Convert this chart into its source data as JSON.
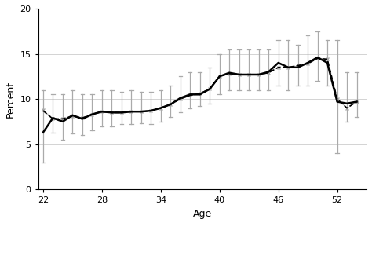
{
  "ages": [
    22,
    23,
    24,
    25,
    26,
    27,
    28,
    29,
    30,
    31,
    32,
    33,
    34,
    35,
    36,
    37,
    38,
    39,
    40,
    41,
    42,
    43,
    44,
    45,
    46,
    47,
    48,
    49,
    50,
    51,
    52,
    53,
    54
  ],
  "data_line": [
    6.3,
    7.9,
    7.5,
    8.2,
    7.8,
    8.3,
    8.6,
    8.5,
    8.5,
    8.6,
    8.6,
    8.7,
    9.0,
    9.4,
    10.1,
    10.5,
    10.5,
    11.1,
    12.5,
    12.9,
    12.7,
    12.7,
    12.7,
    13.0,
    14.0,
    13.5,
    13.5,
    14.0,
    14.6,
    14.0,
    9.7,
    9.5,
    9.7
  ],
  "one_type": [
    8.8,
    7.8,
    7.8,
    8.1,
    7.9,
    8.3,
    8.6,
    8.5,
    8.5,
    8.6,
    8.6,
    8.7,
    9.0,
    9.4,
    10.0,
    10.4,
    10.6,
    11.1,
    12.5,
    12.8,
    12.7,
    12.7,
    12.7,
    12.9,
    13.5,
    13.5,
    13.7,
    13.9,
    14.5,
    14.4,
    10.0,
    9.0,
    9.7
  ],
  "seven_types": [
    8.7,
    7.8,
    7.8,
    8.1,
    7.9,
    8.3,
    8.6,
    8.5,
    8.5,
    8.6,
    8.6,
    8.7,
    9.0,
    9.4,
    10.0,
    10.4,
    10.6,
    11.1,
    12.5,
    12.8,
    12.7,
    12.7,
    12.7,
    12.9,
    13.5,
    13.5,
    13.7,
    13.9,
    14.5,
    14.4,
    10.0,
    9.0,
    9.7
  ],
  "ci_lower": [
    3.0,
    6.3,
    5.5,
    6.2,
    6.0,
    6.5,
    7.0,
    7.0,
    7.2,
    7.2,
    7.3,
    7.2,
    7.5,
    8.0,
    8.5,
    9.0,
    9.2,
    9.5,
    10.5,
    11.0,
    11.0,
    11.0,
    11.0,
    11.0,
    11.5,
    11.0,
    11.5,
    11.5,
    12.0,
    11.5,
    4.0,
    7.5,
    8.0
  ],
  "ci_upper": [
    11.0,
    10.5,
    10.5,
    11.0,
    10.5,
    10.5,
    11.0,
    11.0,
    10.8,
    11.0,
    10.8,
    10.8,
    11.0,
    11.5,
    12.5,
    13.0,
    13.0,
    13.5,
    15.0,
    15.5,
    15.5,
    15.5,
    15.5,
    15.5,
    16.5,
    16.5,
    16.0,
    17.0,
    17.5,
    16.5,
    16.5,
    13.0,
    13.0
  ],
  "xlabel": "Age",
  "ylabel": "Percent",
  "xlim": [
    21.5,
    55
  ],
  "ylim": [
    0,
    20
  ],
  "xticks": [
    22,
    28,
    34,
    40,
    46,
    52
  ],
  "yticks": [
    0,
    5,
    10,
    15,
    20
  ],
  "data_color": "#000000",
  "ci_color": "#aaaaaa",
  "one_type_color": "#aaaaaa",
  "seven_types_color": "#000000",
  "bg_color": "#ffffff",
  "grid_color": "#cccccc"
}
